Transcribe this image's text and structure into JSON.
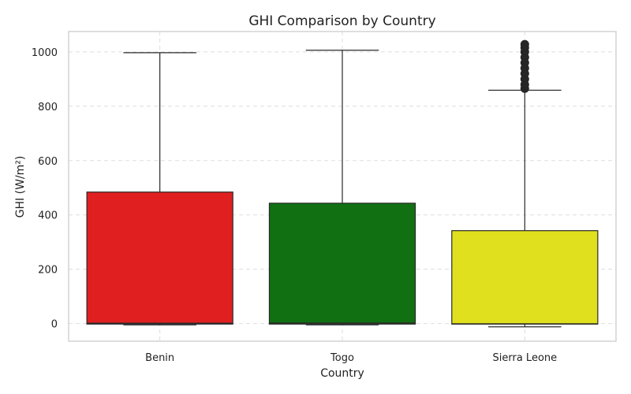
{
  "chart_data": {
    "type": "box",
    "title": "GHI Comparison by Country",
    "xlabel": "Country",
    "ylabel": "GHI (W/m²)",
    "ylim": [
      -65,
      1075
    ],
    "yticks": [
      0,
      200,
      400,
      600,
      800,
      1000
    ],
    "grid": true,
    "categories": [
      "Benin",
      "Togo",
      "Sierra Leone"
    ],
    "boxes": [
      {
        "name": "Benin",
        "color": "#e02020",
        "whisker_low": -5,
        "q1": -2,
        "median": 1,
        "q3": 484,
        "whisker_high": 997,
        "outliers": []
      },
      {
        "name": "Togo",
        "color": "#117011",
        "whisker_low": -5,
        "q1": -2,
        "median": 2,
        "q3": 443,
        "whisker_high": 1006,
        "outliers": []
      },
      {
        "name": "Sierra Leone",
        "color": "#e0e01e",
        "whisker_low": -12,
        "q1": -2,
        "median": -1,
        "q3": 342,
        "whisker_high": 859,
        "outliers": [
          865,
          880,
          900,
          920,
          940,
          960,
          980,
          1000,
          1015,
          1028
        ]
      }
    ]
  }
}
